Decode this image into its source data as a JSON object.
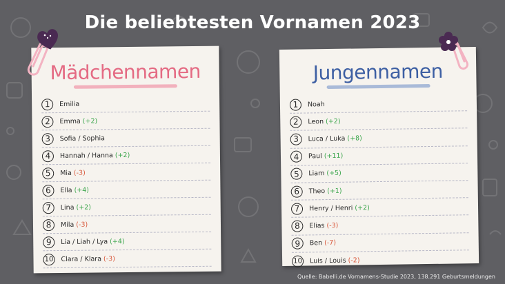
{
  "title": "Die beliebtesten Vornamen 2023",
  "colors": {
    "background": "#5f5f63",
    "card": "#f6f3ee",
    "girls_title": "#e46a83",
    "boys_title": "#3d5fa3",
    "up": "#3aa54b",
    "down": "#d8573a"
  },
  "girls": {
    "heading": "Mädchennamen",
    "items": [
      {
        "rank": "1",
        "name": "Emilia",
        "change": "",
        "dir": ""
      },
      {
        "rank": "2",
        "name": "Emma",
        "change": "(+2)",
        "dir": "up"
      },
      {
        "rank": "3",
        "name": "Sofia / Sophia",
        "change": "",
        "dir": ""
      },
      {
        "rank": "4",
        "name": "Hannah / Hanna",
        "change": "(+2)",
        "dir": "up"
      },
      {
        "rank": "5",
        "name": "Mia",
        "change": "(-3)",
        "dir": "down"
      },
      {
        "rank": "6",
        "name": "Ella",
        "change": "(+4)",
        "dir": "up"
      },
      {
        "rank": "7",
        "name": "Lina",
        "change": "(+2)",
        "dir": "up"
      },
      {
        "rank": "8",
        "name": "Mila",
        "change": "(-3)",
        "dir": "down"
      },
      {
        "rank": "9",
        "name": "Lia / Liah / Lya",
        "change": "(+4)",
        "dir": "up"
      },
      {
        "rank": "10",
        "name": "Clara / Klara",
        "change": "(-3)",
        "dir": "down"
      }
    ]
  },
  "boys": {
    "heading": "Jungennamen",
    "items": [
      {
        "rank": "1",
        "name": "Noah",
        "change": "",
        "dir": ""
      },
      {
        "rank": "2",
        "name": "Leon",
        "change": "(+2)",
        "dir": "up"
      },
      {
        "rank": "3",
        "name": "Luca / Luka",
        "change": "(+8)",
        "dir": "up"
      },
      {
        "rank": "4",
        "name": "Paul",
        "change": "(+11)",
        "dir": "up"
      },
      {
        "rank": "5",
        "name": "Liam",
        "change": "(+5)",
        "dir": "up"
      },
      {
        "rank": "6",
        "name": "Theo",
        "change": "(+1)",
        "dir": "up"
      },
      {
        "rank": "7",
        "name": "Henry / Henri",
        "change": "(+2)",
        "dir": "up"
      },
      {
        "rank": "8",
        "name": "Elias",
        "change": "(-3)",
        "dir": "down"
      },
      {
        "rank": "9",
        "name": "Ben",
        "change": "(-7)",
        "dir": "down"
      },
      {
        "rank": "10",
        "name": "Luis / Louis",
        "change": "(-2)",
        "dir": "down"
      }
    ]
  },
  "source": "Quelle: Babelli.de Vornamens-Studie 2023, 138.291 Geburtsmeldungen",
  "icons": [
    "heart-icon",
    "paperclip-icon",
    "flower-icon"
  ]
}
